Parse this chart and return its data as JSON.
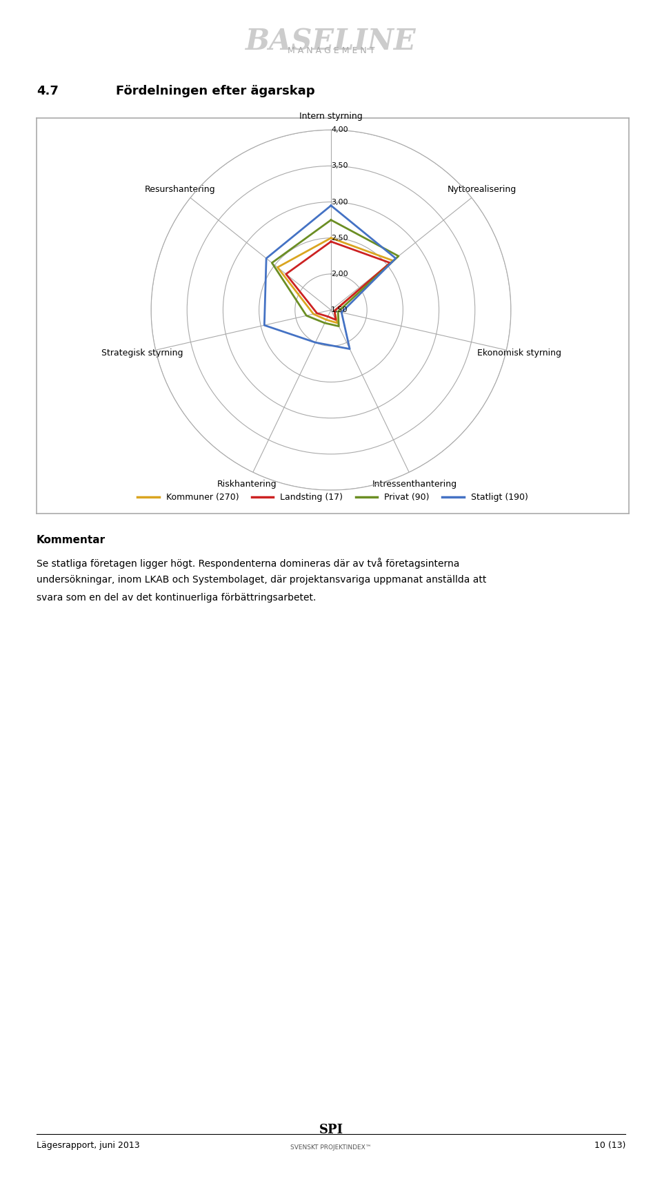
{
  "header_title": "BASELINE",
  "header_subtitle": "M A N A G E M E N T",
  "section_num": "4.7",
  "section_title": "Fördelningen efter ägarskap",
  "categories": [
    "Intern styrning",
    "Nyttorealisering",
    "Ekonomisk styrning",
    "Intressenthantering",
    "Riskhantering",
    "Strategisk styrning",
    "Resurshantering"
  ],
  "r_min": 1.5,
  "r_max": 4.0,
  "r_ticks": [
    1.5,
    2.0,
    2.5,
    3.0,
    3.5,
    4.0
  ],
  "r_tick_labels": [
    "1,50",
    "2,00",
    "2,50",
    "3,00",
    "3,50",
    "4,00"
  ],
  "series": [
    {
      "label": "Kommuner (270)",
      "color": "#DAA520",
      "values": [
        2.5,
        2.6,
        1.55,
        1.7,
        1.65,
        1.75,
        2.45
      ]
    },
    {
      "label": "Landsting (17)",
      "color": "#CC2222",
      "values": [
        2.45,
        2.55,
        1.55,
        1.65,
        1.6,
        1.7,
        2.3
      ]
    },
    {
      "label": "Privat (90)",
      "color": "#6B8E23",
      "values": [
        2.75,
        2.7,
        1.6,
        1.75,
        1.7,
        1.85,
        2.55
      ]
    },
    {
      "label": "Statligt (190)",
      "color": "#4472C4",
      "values": [
        2.95,
        2.65,
        1.65,
        2.1,
        2.0,
        2.45,
        2.65
      ]
    }
  ],
  "comment_title": "Kommentar",
  "comment_line1": "Se statliga företagen ligger högt. Respondenterna domineras där av två företagsinterna",
  "comment_line2": "undersökningar, inom LKAB och Systembolaget, där projektansvariga uppmanat anställda att",
  "comment_line3": "svara som en del av det kontinuerliga förbättringsarbetet.",
  "footer_left": "Lägesrapport, juni 2013",
  "footer_right": "10 (13)",
  "footer_logo_top": "SPI",
  "footer_logo_bottom": "SVENSKT PROJEKTINDEX™",
  "bg_color": "#FFFFFF",
  "box_border_color": "#AAAAAA",
  "radar_grid_color": "#AAAAAA",
  "radar_bg_color": "#FFFFFF"
}
